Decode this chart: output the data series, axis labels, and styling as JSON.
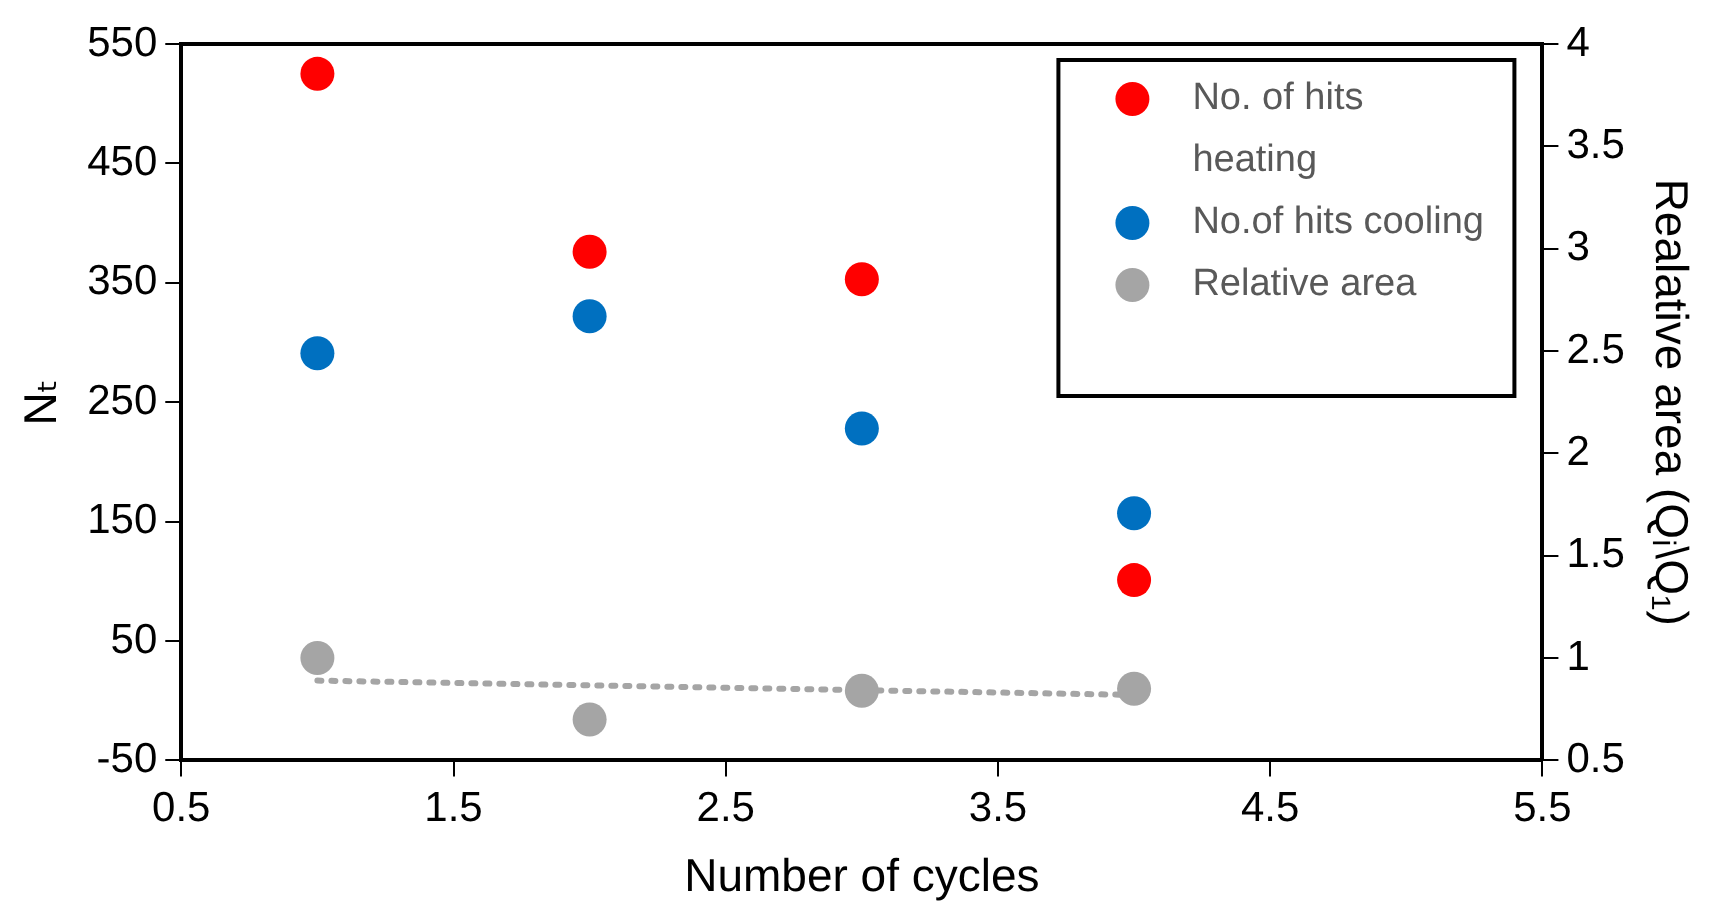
{
  "chart_data": {
    "type": "scatter",
    "xlabel": "Number of cycles",
    "ylabel": "Nₜ",
    "y2label": "Realative area (Qᵢ\\Q₁)",
    "x": [
      1,
      2,
      3,
      4
    ],
    "series": [
      {
        "name": "No. of hits heating",
        "color": "#ff0000",
        "values": [
          525,
          376,
          353,
          101
        ]
      },
      {
        "name": "No.of hits cooling",
        "color": "#0070c0",
        "values": [
          291,
          322,
          228,
          157
        ]
      },
      {
        "name": "Relative area",
        "color": "#a5a5a5",
        "axis": "y2",
        "values": [
          1.0,
          0.7,
          0.84,
          0.85
        ]
      },
      {
        "type": "line",
        "color": "#a5a5a5",
        "axis": "y2",
        "x": [
          1,
          4
        ],
        "values": [
          0.89,
          0.82
        ],
        "line_style": "dotted",
        "marker": "none"
      }
    ],
    "xlim": [
      0.5,
      5.5
    ],
    "xticks": [
      0.5,
      1.5,
      2.5,
      3.5,
      4.5,
      5.5
    ],
    "ylim": [
      -50,
      550
    ],
    "yticks": [
      -50,
      50,
      150,
      250,
      350,
      450,
      550
    ],
    "y2lim": [
      0.5,
      4
    ],
    "y2ticks": [
      0.5,
      1,
      1.5,
      2,
      2.5,
      3,
      3.5,
      4
    ],
    "grid": false,
    "legend": "top right",
    "marker": "circle"
  }
}
